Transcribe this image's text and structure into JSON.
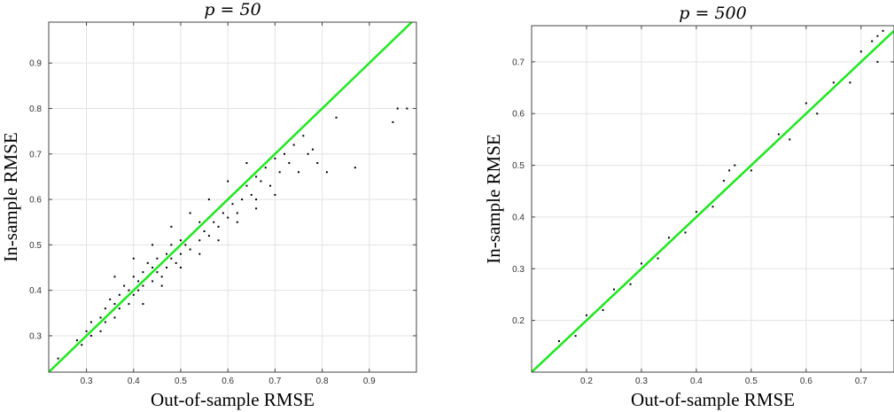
{
  "chart_data": [
    {
      "type": "scatter",
      "title": "p = 50",
      "xlabel": "Out-of-sample RMSE",
      "ylabel": "In-sample RMSE",
      "xlim": [
        0.22,
        1.0
      ],
      "ylim": [
        0.22,
        0.99
      ],
      "xticks": [
        0.3,
        0.4,
        0.5,
        0.6,
        0.7,
        0.8,
        0.9
      ],
      "xtick_labels": [
        "0.3",
        "0.4",
        "0.5",
        "0.6",
        "0.7",
        "0.8",
        "0.9"
      ],
      "yticks": [
        0.3,
        0.4,
        0.5,
        0.6,
        0.7,
        0.8,
        0.9
      ],
      "ytick_labels": [
        "0.3",
        "0.4",
        "0.5",
        "0.6",
        "0.7",
        "0.8",
        "0.9"
      ],
      "grid": true,
      "reference_line": {
        "x": [
          0.22,
          1.0
        ],
        "y": [
          0.22,
          1.0
        ],
        "color": "#1ee81e"
      },
      "points": [
        [
          0.24,
          0.25
        ],
        [
          0.26,
          0.26
        ],
        [
          0.27,
          0.27
        ],
        [
          0.28,
          0.29
        ],
        [
          0.29,
          0.28
        ],
        [
          0.3,
          0.31
        ],
        [
          0.31,
          0.3
        ],
        [
          0.31,
          0.33
        ],
        [
          0.32,
          0.32
        ],
        [
          0.33,
          0.34
        ],
        [
          0.33,
          0.31
        ],
        [
          0.34,
          0.36
        ],
        [
          0.34,
          0.33
        ],
        [
          0.35,
          0.35
        ],
        [
          0.35,
          0.38
        ],
        [
          0.36,
          0.34
        ],
        [
          0.36,
          0.37
        ],
        [
          0.37,
          0.39
        ],
        [
          0.37,
          0.36
        ],
        [
          0.38,
          0.38
        ],
        [
          0.38,
          0.41
        ],
        [
          0.39,
          0.37
        ],
        [
          0.39,
          0.4
        ],
        [
          0.4,
          0.39
        ],
        [
          0.4,
          0.43
        ],
        [
          0.41,
          0.4
        ],
        [
          0.41,
          0.42
        ],
        [
          0.42,
          0.44
        ],
        [
          0.42,
          0.41
        ],
        [
          0.43,
          0.43
        ],
        [
          0.43,
          0.46
        ],
        [
          0.44,
          0.42
        ],
        [
          0.44,
          0.45
        ],
        [
          0.45,
          0.44
        ],
        [
          0.45,
          0.47
        ],
        [
          0.46,
          0.43
        ],
        [
          0.46,
          0.46
        ],
        [
          0.47,
          0.48
        ],
        [
          0.47,
          0.45
        ],
        [
          0.48,
          0.47
        ],
        [
          0.48,
          0.5
        ],
        [
          0.49,
          0.46
        ],
        [
          0.49,
          0.49
        ],
        [
          0.5,
          0.48
        ],
        [
          0.5,
          0.51
        ],
        [
          0.51,
          0.5
        ],
        [
          0.52,
          0.52
        ],
        [
          0.52,
          0.49
        ],
        [
          0.53,
          0.53
        ],
        [
          0.54,
          0.51
        ],
        [
          0.54,
          0.55
        ],
        [
          0.55,
          0.53
        ],
        [
          0.56,
          0.56
        ],
        [
          0.56,
          0.52
        ],
        [
          0.57,
          0.55
        ],
        [
          0.58,
          0.58
        ],
        [
          0.58,
          0.54
        ],
        [
          0.59,
          0.57
        ],
        [
          0.6,
          0.6
        ],
        [
          0.6,
          0.56
        ],
        [
          0.61,
          0.59
        ],
        [
          0.62,
          0.62
        ],
        [
          0.62,
          0.57
        ],
        [
          0.63,
          0.6
        ],
        [
          0.64,
          0.63
        ],
        [
          0.65,
          0.61
        ],
        [
          0.66,
          0.65
        ],
        [
          0.66,
          0.6
        ],
        [
          0.67,
          0.64
        ],
        [
          0.68,
          0.67
        ],
        [
          0.69,
          0.63
        ],
        [
          0.7,
          0.69
        ],
        [
          0.71,
          0.66
        ],
        [
          0.72,
          0.7
        ],
        [
          0.73,
          0.68
        ],
        [
          0.74,
          0.72
        ],
        [
          0.75,
          0.66
        ],
        [
          0.76,
          0.74
        ],
        [
          0.77,
          0.7
        ],
        [
          0.78,
          0.71
        ],
        [
          0.79,
          0.68
        ],
        [
          0.8,
          0.8
        ],
        [
          0.81,
          0.66
        ],
        [
          0.83,
          0.78
        ],
        [
          0.87,
          0.67
        ],
        [
          0.95,
          0.77
        ],
        [
          0.96,
          0.8
        ],
        [
          0.98,
          0.8
        ],
        [
          0.36,
          0.43
        ],
        [
          0.4,
          0.47
        ],
        [
          0.44,
          0.5
        ],
        [
          0.48,
          0.54
        ],
        [
          0.52,
          0.57
        ],
        [
          0.56,
          0.6
        ],
        [
          0.6,
          0.64
        ],
        [
          0.64,
          0.68
        ],
        [
          0.42,
          0.37
        ],
        [
          0.46,
          0.41
        ],
        [
          0.5,
          0.45
        ],
        [
          0.54,
          0.48
        ],
        [
          0.58,
          0.51
        ],
        [
          0.62,
          0.55
        ],
        [
          0.66,
          0.58
        ],
        [
          0.7,
          0.61
        ]
      ]
    },
    {
      "type": "scatter",
      "title": "p = 500",
      "xlabel": "Out-of-sample RMSE",
      "ylabel": "In-sample RMSE",
      "xlim": [
        0.1,
        0.76
      ],
      "ylim": [
        0.1,
        0.77
      ],
      "xticks": [
        0.2,
        0.3,
        0.4,
        0.5,
        0.6,
        0.7
      ],
      "xtick_labels": [
        "0.2",
        "0.3",
        "0.4",
        "0.5",
        "0.6",
        "0.7"
      ],
      "yticks": [
        0.2,
        0.3,
        0.4,
        0.5,
        0.6,
        0.7
      ],
      "ytick_labels": [
        "0.2",
        "0.3",
        "0.4",
        "0.5",
        "0.6",
        "0.7"
      ],
      "grid": true,
      "reference_line": {
        "x": [
          0.1,
          0.76
        ],
        "y": [
          0.1,
          0.76
        ],
        "color": "#1ee81e"
      },
      "points": [
        [
          0.11,
          0.11
        ],
        [
          0.12,
          0.12
        ],
        [
          0.13,
          0.13
        ],
        [
          0.14,
          0.14
        ],
        [
          0.15,
          0.15
        ],
        [
          0.16,
          0.16
        ],
        [
          0.17,
          0.17
        ],
        [
          0.18,
          0.18
        ],
        [
          0.19,
          0.19
        ],
        [
          0.2,
          0.2
        ],
        [
          0.21,
          0.21
        ],
        [
          0.22,
          0.22
        ],
        [
          0.23,
          0.23
        ],
        [
          0.24,
          0.24
        ],
        [
          0.25,
          0.25
        ],
        [
          0.26,
          0.26
        ],
        [
          0.27,
          0.27
        ],
        [
          0.28,
          0.28
        ],
        [
          0.29,
          0.29
        ],
        [
          0.3,
          0.3
        ],
        [
          0.31,
          0.31
        ],
        [
          0.32,
          0.32
        ],
        [
          0.33,
          0.33
        ],
        [
          0.34,
          0.34
        ],
        [
          0.35,
          0.35
        ],
        [
          0.36,
          0.36
        ],
        [
          0.37,
          0.37
        ],
        [
          0.38,
          0.38
        ],
        [
          0.39,
          0.39
        ],
        [
          0.4,
          0.4
        ],
        [
          0.41,
          0.41
        ],
        [
          0.42,
          0.42
        ],
        [
          0.43,
          0.43
        ],
        [
          0.44,
          0.44
        ],
        [
          0.45,
          0.45
        ],
        [
          0.46,
          0.46
        ],
        [
          0.47,
          0.47
        ],
        [
          0.48,
          0.48
        ],
        [
          0.5,
          0.5
        ],
        [
          0.52,
          0.52
        ],
        [
          0.54,
          0.54
        ],
        [
          0.56,
          0.56
        ],
        [
          0.58,
          0.58
        ],
        [
          0.6,
          0.6
        ],
        [
          0.62,
          0.62
        ],
        [
          0.64,
          0.64
        ],
        [
          0.66,
          0.66
        ],
        [
          0.68,
          0.68
        ],
        [
          0.7,
          0.7
        ],
        [
          0.72,
          0.72
        ],
        [
          0.74,
          0.76
        ],
        [
          0.15,
          0.16
        ],
        [
          0.2,
          0.21
        ],
        [
          0.25,
          0.26
        ],
        [
          0.3,
          0.31
        ],
        [
          0.35,
          0.36
        ],
        [
          0.4,
          0.41
        ],
        [
          0.45,
          0.47
        ],
        [
          0.46,
          0.49
        ],
        [
          0.47,
          0.5
        ],
        [
          0.55,
          0.56
        ],
        [
          0.6,
          0.62
        ],
        [
          0.65,
          0.66
        ],
        [
          0.7,
          0.72
        ],
        [
          0.72,
          0.74
        ],
        [
          0.73,
          0.75
        ],
        [
          0.18,
          0.17
        ],
        [
          0.23,
          0.22
        ],
        [
          0.28,
          0.27
        ],
        [
          0.33,
          0.32
        ],
        [
          0.38,
          0.37
        ],
        [
          0.43,
          0.42
        ],
        [
          0.5,
          0.49
        ],
        [
          0.57,
          0.55
        ],
        [
          0.62,
          0.6
        ],
        [
          0.68,
          0.66
        ],
        [
          0.73,
          0.7
        ]
      ]
    }
  ]
}
